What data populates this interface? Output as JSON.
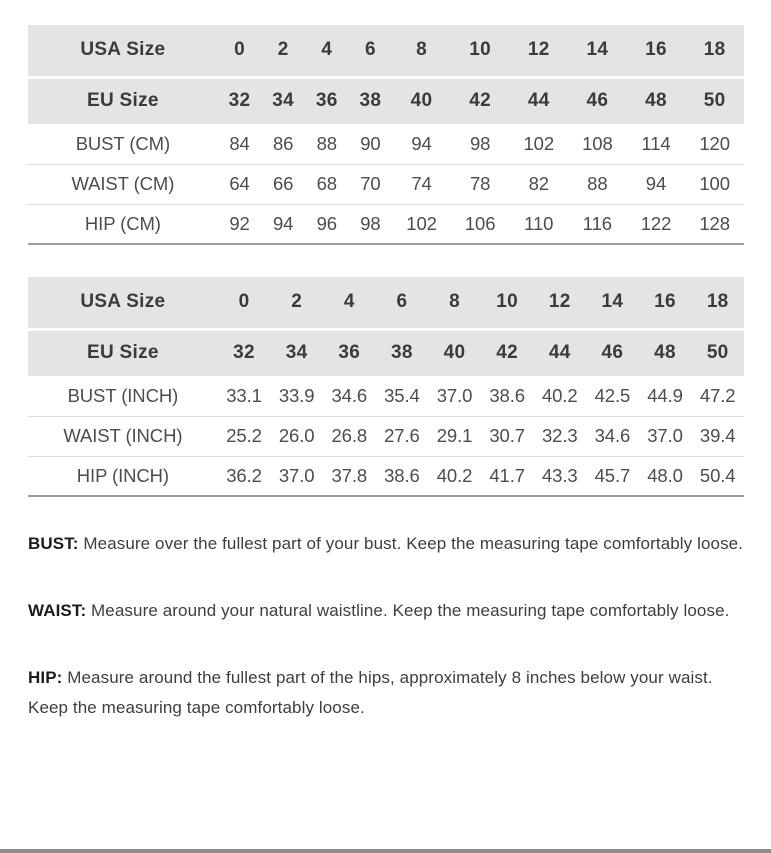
{
  "colors": {
    "header_bg": "#e4e4e4",
    "row_divider": "#dcdcdc",
    "table_bottom_border": "#9b9b9b",
    "bottom_bar": "#8c8c8c"
  },
  "tables": [
    {
      "id": "cm",
      "header_rows": [
        {
          "label": "USA Size",
          "values": [
            "0",
            "2",
            "4",
            "6",
            "8",
            "10",
            "12",
            "14",
            "16",
            "18"
          ]
        },
        {
          "label": "EU Size",
          "values": [
            "32",
            "34",
            "36",
            "38",
            "40",
            "42",
            "44",
            "46",
            "48",
            "50"
          ]
        }
      ],
      "body_rows": [
        {
          "label": "BUST (CM)",
          "values": [
            "84",
            "86",
            "88",
            "90",
            "94",
            "98",
            "102",
            "108",
            "114",
            "120"
          ]
        },
        {
          "label": "WAIST (CM)",
          "values": [
            "64",
            "66",
            "68",
            "70",
            "74",
            "78",
            "82",
            "88",
            "94",
            "100"
          ]
        },
        {
          "label": "HIP (CM)",
          "values": [
            "92",
            "94",
            "96",
            "98",
            "102",
            "106",
            "110",
            "116",
            "122",
            "128"
          ]
        }
      ]
    },
    {
      "id": "inch",
      "header_rows": [
        {
          "label": "USA Size",
          "values": [
            "0",
            "2",
            "4",
            "6",
            "8",
            "10",
            "12",
            "14",
            "16",
            "18"
          ]
        },
        {
          "label": "EU Size",
          "values": [
            "32",
            "34",
            "36",
            "38",
            "40",
            "42",
            "44",
            "46",
            "48",
            "50"
          ]
        }
      ],
      "body_rows": [
        {
          "label": "BUST (INCH)",
          "values": [
            "33.1",
            "33.9",
            "34.6",
            "35.4",
            "37.0",
            "38.6",
            "40.2",
            "42.5",
            "44.9",
            "47.2"
          ]
        },
        {
          "label": "WAIST (INCH)",
          "values": [
            "25.2",
            "26.0",
            "26.8",
            "27.6",
            "29.1",
            "30.7",
            "32.3",
            "34.6",
            "37.0",
            "39.4"
          ]
        },
        {
          "label": "HIP (INCH)",
          "values": [
            "36.2",
            "37.0",
            "37.8",
            "38.6",
            "40.2",
            "41.7",
            "43.3",
            "45.7",
            "48.0",
            "50.4"
          ]
        }
      ]
    }
  ],
  "notes": [
    {
      "term": "BUST:",
      "text": "Measure over the fullest part of your bust. Keep the measuring tape comfortably loose."
    },
    {
      "term": "WAIST:",
      "text": "Measure around your natural waistline. Keep the measuring tape comfortably loose."
    },
    {
      "term": "HIP:",
      "text": "Measure around the fullest part of the hips, approximately 8 inches below your waist. Keep the measuring tape comfortably loose."
    }
  ]
}
